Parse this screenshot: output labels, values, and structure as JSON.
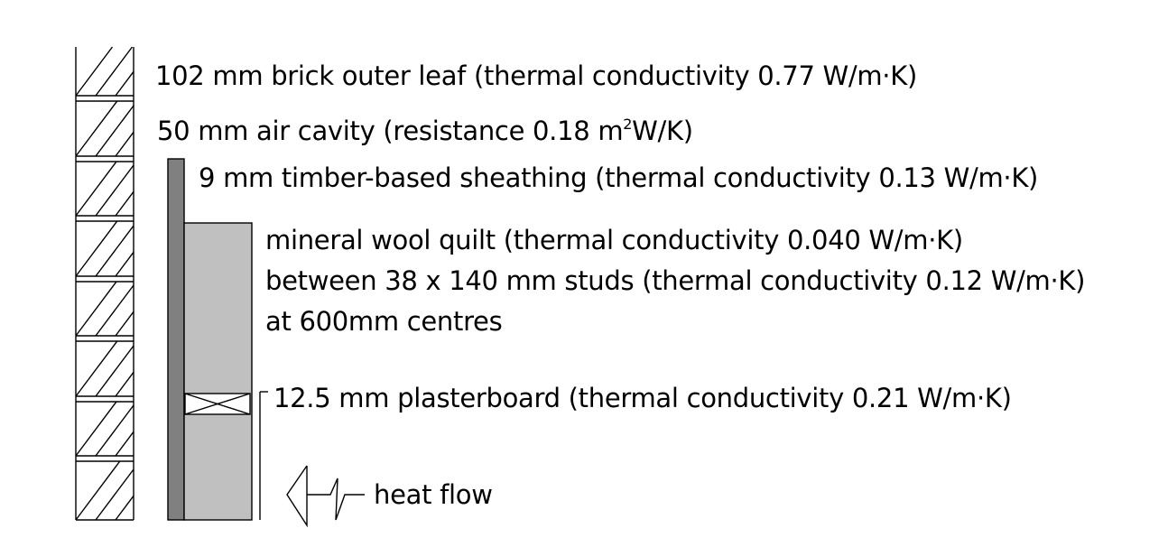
{
  "labels": {
    "brick": "102 mm brick outer leaf (thermal conductivity 0.77 W/m·K)",
    "cavity_before": "50 mm air cavity (resistance 0.18 m",
    "cavity_sup": "2",
    "cavity_after": "W/K)",
    "sheathing": "9 mm timber-based sheathing (thermal conductivity 0.13 W/m·K)",
    "wool_line1": "mineral wool quilt (thermal conductivity 0.040 W/m·K)",
    "wool_line2": "between 38 x 140 mm studs (thermal conductivity 0.12 W/m·K)",
    "wool_line3": "at 600mm centres",
    "plasterboard": "12.5 mm plasterboard (thermal conductivity 0.21 W/m·K)",
    "heat_flow": "heat flow"
  },
  "colors": {
    "sheathing": "#808080",
    "insulation": "#c0c0c0",
    "stroke": "#000000"
  }
}
